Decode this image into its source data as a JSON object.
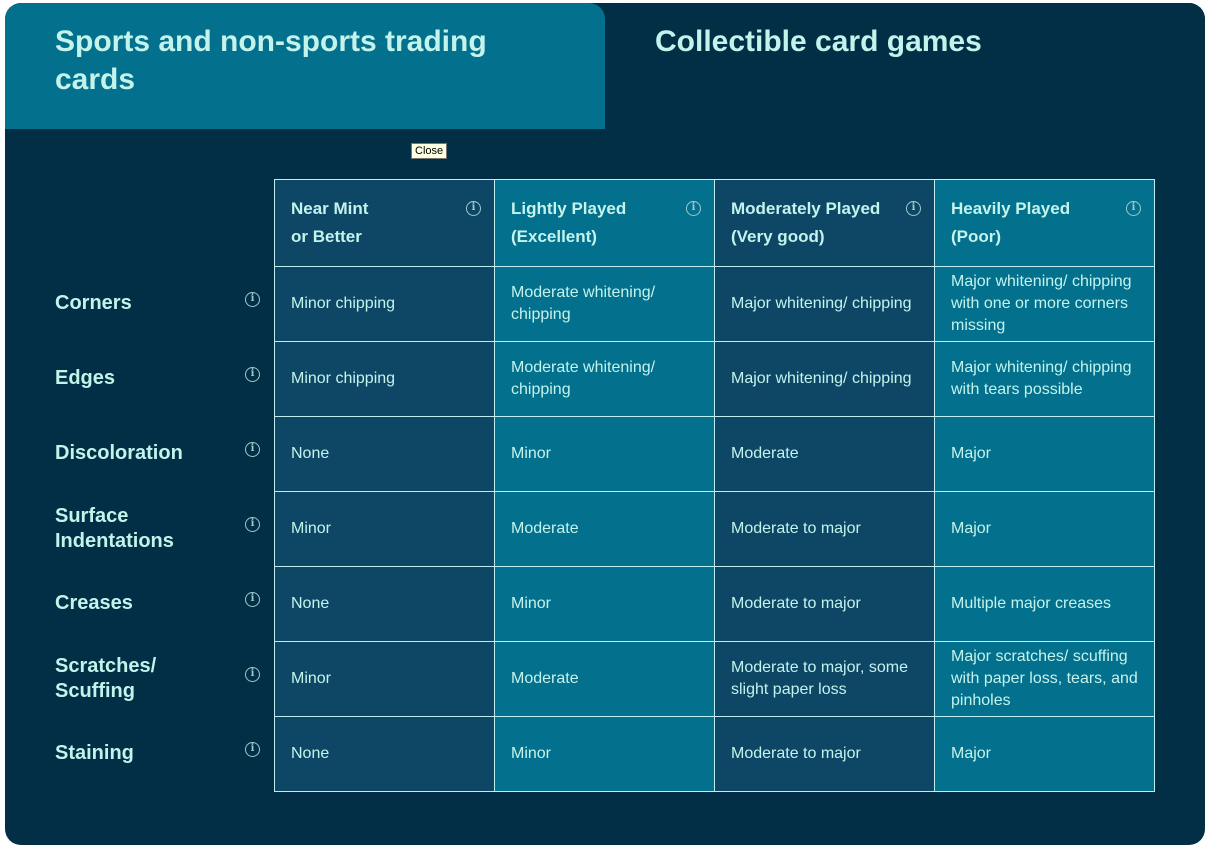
{
  "tabs": [
    {
      "label": "Sports and non-sports trading cards",
      "active": true
    },
    {
      "label": "Collectible card games",
      "active": false
    }
  ],
  "tooltip": "Close",
  "columns": [
    {
      "line1": "Near Mint",
      "line2": "or Better"
    },
    {
      "line1": "Lightly Played",
      "line2": "(Excellent)"
    },
    {
      "line1": "Moderately Played",
      "line2": "(Very good)"
    },
    {
      "line1": "Heavily Played",
      "line2": "(Poor)"
    }
  ],
  "rows": [
    {
      "label": "Corners",
      "cells": [
        "Minor chipping",
        "Moderate whitening/ chipping",
        "Major whitening/ chipping",
        "Major whitening/ chipping with one or more corners missing"
      ]
    },
    {
      "label": "Edges",
      "cells": [
        "Minor chipping",
        "Moderate whitening/ chipping",
        "Major whitening/ chipping",
        "Major whitening/ chipping with tears possible"
      ]
    },
    {
      "label": "Discoloration",
      "cells": [
        "None",
        "Minor",
        "Moderate",
        "Major"
      ]
    },
    {
      "label": "Surface Indentations",
      "cells": [
        "Minor",
        "Moderate",
        "Moderate to major",
        "Major"
      ]
    },
    {
      "label": "Creases",
      "cells": [
        "None",
        "Minor",
        "Moderate to major",
        "Multiple major creases"
      ]
    },
    {
      "label": "Scratches/ Scuffing",
      "cells": [
        "Minor",
        "Moderate",
        "Moderate to major, some slight paper loss",
        "Major scratches/ scuffing with paper loss, tears, and pinholes"
      ]
    },
    {
      "label": "Staining",
      "cells": [
        "None",
        "Minor",
        "Moderate to major",
        "Major"
      ]
    }
  ],
  "icons": {
    "info": "info-icon"
  },
  "colors": {
    "background": "#022f45",
    "active_tab": "#03708d",
    "dark_cell": "#0e4766",
    "light_cell": "#03708d",
    "text": "#c4f3ec"
  }
}
